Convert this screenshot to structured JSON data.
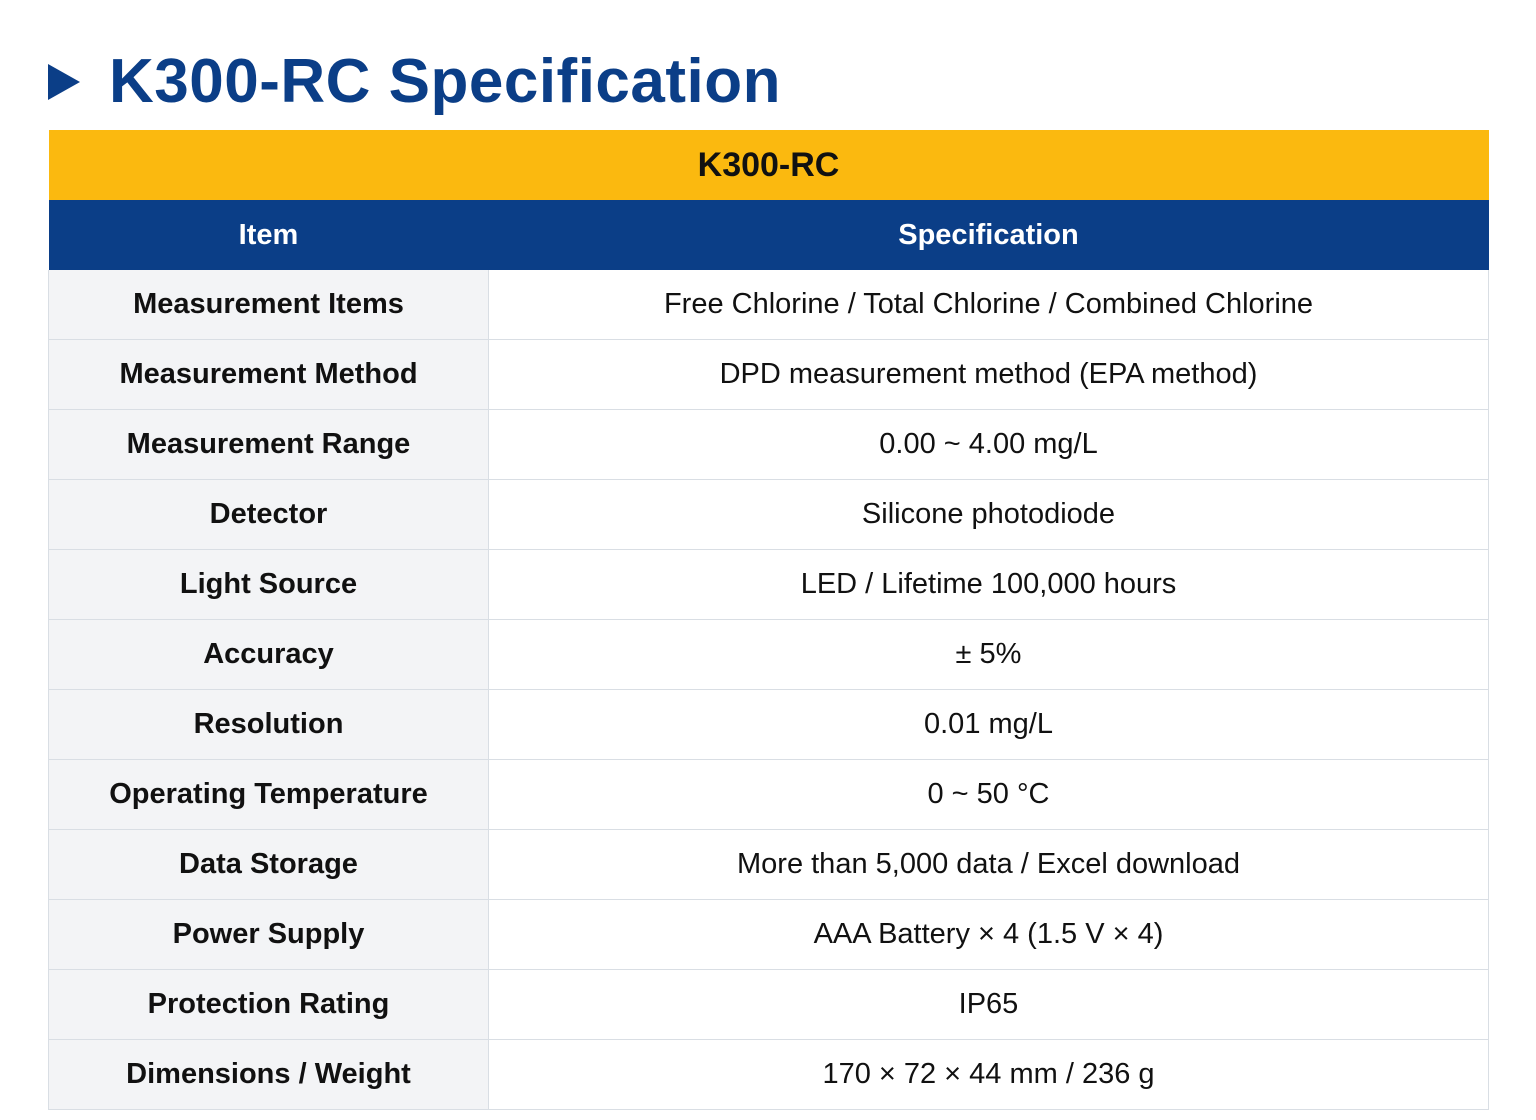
{
  "page_title": "K300-RC Specification",
  "table": {
    "product_name": "K300-RC",
    "columns": {
      "item": "Item",
      "specification": "Specification"
    },
    "rows": [
      {
        "item": "Measurement Items",
        "spec": "Free Chlorine / Total Chlorine / Combined Chlorine"
      },
      {
        "item": "Measurement Method",
        "spec": "DPD measurement method (EPA method)"
      },
      {
        "item": "Measurement Range",
        "spec": "0.00 ~ 4.00 mg/L"
      },
      {
        "item": "Detector",
        "spec": "Silicone photodiode"
      },
      {
        "item": "Light Source",
        "spec": "LED / Lifetime 100,000 hours"
      },
      {
        "item": "Accuracy",
        "spec": "± 5%"
      },
      {
        "item": "Resolution",
        "spec": "0.01 mg/L"
      },
      {
        "item": "Operating Temperature",
        "spec": "0 ~ 50 °C"
      },
      {
        "item": "Data Storage",
        "spec": "More than 5,000 data / Excel download"
      },
      {
        "item": "Power Supply",
        "spec": "AAA Battery × 4 (1.5 V × 4)"
      },
      {
        "item": "Protection Rating",
        "spec": "IP65"
      },
      {
        "item": "Dimensions / Weight",
        "spec": "170 × 72 × 44 mm / 236 g"
      }
    ]
  },
  "icons": {
    "heading_marker": "triangle-right-icon"
  },
  "colors": {
    "brand_blue": "#0b3e87",
    "accent_yellow": "#fbb90f",
    "item_cell_bg": "#f3f4f6",
    "border": "#d9dee4"
  }
}
